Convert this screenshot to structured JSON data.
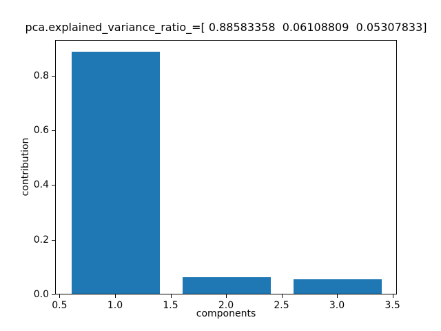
{
  "chart_data": {
    "type": "bar",
    "title": "pca.explained_variance_ratio_=[ 0.88583358  0.06108809  0.05307833]",
    "xlabel": "components",
    "ylabel": "contribution",
    "categories": [
      1,
      2,
      3
    ],
    "values": [
      0.88583358,
      0.06108809,
      0.05307833
    ],
    "bar_width": 0.8,
    "bar_color": "#1f77b4",
    "xlim": [
      0.46,
      3.54
    ],
    "ylim": [
      0,
      0.93012526
    ],
    "xticks": [
      0.5,
      1.0,
      1.5,
      2.0,
      2.5,
      3.0,
      3.5
    ],
    "xtick_labels": [
      "0.5",
      "1.0",
      "1.5",
      "2.0",
      "2.5",
      "3.0",
      "3.5"
    ],
    "yticks": [
      0.0,
      0.2,
      0.4,
      0.6,
      0.8
    ],
    "ytick_labels": [
      "0.0",
      "0.2",
      "0.4",
      "0.6",
      "0.8"
    ],
    "grid": false,
    "legend": null,
    "text_color": "#000000",
    "spine_color": "#000000",
    "background_color": "#ffffff"
  }
}
